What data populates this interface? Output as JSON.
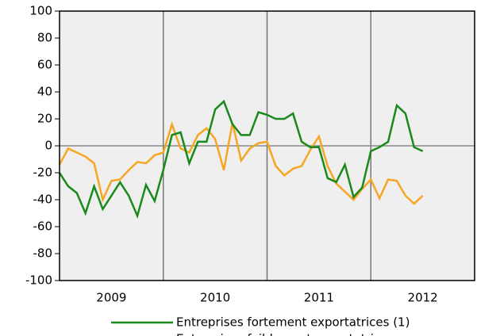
{
  "chart_data": {
    "type": "line",
    "x": [
      0,
      1,
      2,
      3,
      4,
      5,
      6,
      7,
      8,
      9,
      10,
      11,
      12,
      13,
      14,
      15,
      16,
      17,
      18,
      19,
      20,
      21,
      22,
      23,
      24,
      25,
      26,
      27,
      28,
      29,
      30,
      31,
      32,
      33,
      34,
      35,
      36,
      37,
      38,
      39,
      40,
      41,
      42
    ],
    "series": [
      {
        "name": "Entreprises fortement exportatrices (1)",
        "color": "#1a8a1a",
        "values": [
          -20,
          -30,
          -35,
          -50,
          -30,
          -47,
          -37,
          -27,
          -37,
          -52,
          -29,
          -41,
          -18,
          8,
          10,
          -13,
          3,
          3,
          27,
          33,
          16,
          8,
          8,
          25,
          23,
          20,
          20,
          24,
          3,
          -1,
          -1,
          -24,
          -27,
          -14,
          -38,
          -31,
          -4,
          -1,
          3,
          30,
          24,
          -1,
          -4
        ]
      },
      {
        "name": "Entreprises faiblement exportatrices",
        "color": "#f5a623",
        "values": [
          -14,
          -2,
          -5,
          -8,
          -13,
          -40,
          -26,
          -25,
          -18,
          -12,
          -13,
          -7,
          -5,
          16,
          -2,
          -5,
          8,
          13,
          5,
          -18,
          17,
          -11,
          -2,
          2,
          3,
          -15,
          -22,
          -17,
          -15,
          -3,
          7,
          -15,
          -28,
          -34,
          -40,
          -32,
          -25,
          -39,
          -25,
          -26,
          -37,
          -43,
          -37
        ]
      }
    ],
    "xlim": [
      0,
      48
    ],
    "xticks": [
      {
        "value": 6,
        "label": "2009"
      },
      {
        "value": 18,
        "label": "2010"
      },
      {
        "value": 30,
        "label": "2011"
      },
      {
        "value": 42,
        "label": "2012"
      }
    ],
    "ylim": [
      -100,
      100
    ],
    "yticks": [
      -100,
      -80,
      -60,
      -40,
      -20,
      0,
      20,
      40,
      60,
      80,
      100
    ]
  }
}
